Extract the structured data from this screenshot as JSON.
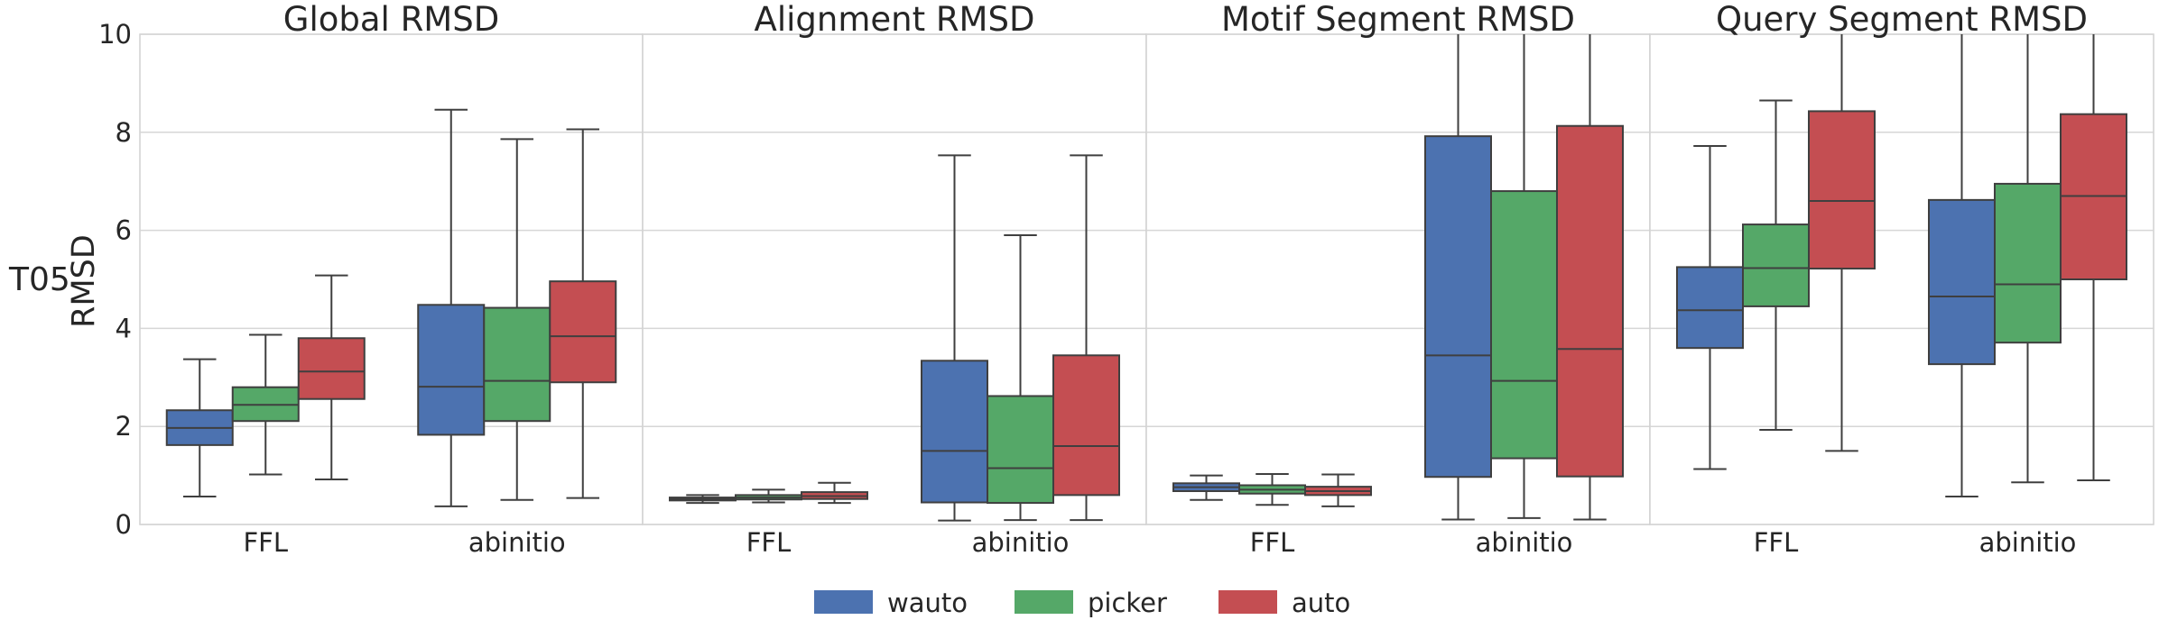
{
  "row_label": "T05",
  "chart_data": {
    "type": "box",
    "ylabel": "RMSD",
    "ylim": [
      0,
      10
    ],
    "yticks": [
      "0",
      "2",
      "4",
      "6",
      "8",
      "10"
    ],
    "grid": true,
    "legend_position": "bottom-center",
    "legend": [
      {
        "name": "wauto",
        "color": "#4c72b0"
      },
      {
        "name": "picker",
        "color": "#55a868"
      },
      {
        "name": "auto",
        "color": "#c44e52"
      }
    ],
    "categories": [
      "FFL",
      "abinitio"
    ],
    "panels": [
      {
        "title": "Global RMSD",
        "groups": [
          {
            "category": "FFL",
            "boxes": [
              {
                "series": "wauto",
                "min": 0.57,
                "q1": 1.62,
                "median": 1.97,
                "q3": 2.33,
                "max": 3.37
              },
              {
                "series": "picker",
                "min": 1.02,
                "q1": 2.11,
                "median": 2.44,
                "q3": 2.8,
                "max": 3.87
              },
              {
                "series": "auto",
                "min": 0.92,
                "q1": 2.56,
                "median": 3.12,
                "q3": 3.8,
                "max": 5.08
              }
            ]
          },
          {
            "category": "abinitio",
            "boxes": [
              {
                "series": "wauto",
                "min": 0.37,
                "q1": 1.83,
                "median": 2.81,
                "q3": 4.48,
                "max": 8.46
              },
              {
                "series": "picker",
                "min": 0.5,
                "q1": 2.11,
                "median": 2.93,
                "q3": 4.42,
                "max": 7.86
              },
              {
                "series": "auto",
                "min": 0.54,
                "q1": 2.9,
                "median": 3.84,
                "q3": 4.96,
                "max": 8.06
              }
            ]
          }
        ]
      },
      {
        "title": "Alignment RMSD",
        "groups": [
          {
            "category": "FFL",
            "boxes": [
              {
                "series": "wauto",
                "min": 0.44,
                "q1": 0.49,
                "median": 0.52,
                "q3": 0.55,
                "max": 0.6
              },
              {
                "series": "picker",
                "min": 0.45,
                "q1": 0.51,
                "median": 0.55,
                "q3": 0.6,
                "max": 0.71
              },
              {
                "series": "auto",
                "min": 0.44,
                "q1": 0.52,
                "median": 0.58,
                "q3": 0.66,
                "max": 0.85
              }
            ]
          },
          {
            "category": "abinitio",
            "boxes": [
              {
                "series": "wauto",
                "min": 0.08,
                "q1": 0.45,
                "median": 1.5,
                "q3": 3.34,
                "max": 7.53
              },
              {
                "series": "picker",
                "min": 0.09,
                "q1": 0.44,
                "median": 1.15,
                "q3": 2.62,
                "max": 5.9
              },
              {
                "series": "auto",
                "min": 0.09,
                "q1": 0.6,
                "median": 1.6,
                "q3": 3.45,
                "max": 7.53
              }
            ]
          }
        ]
      },
      {
        "title": "Motif Segment RMSD",
        "groups": [
          {
            "category": "FFL",
            "boxes": [
              {
                "series": "wauto",
                "min": 0.5,
                "q1": 0.68,
                "median": 0.76,
                "q3": 0.84,
                "max": 1.0
              },
              {
                "series": "picker",
                "min": 0.4,
                "q1": 0.63,
                "median": 0.71,
                "q3": 0.8,
                "max": 1.03
              },
              {
                "series": "auto",
                "min": 0.37,
                "q1": 0.6,
                "median": 0.68,
                "q3": 0.77,
                "max": 1.02
              }
            ]
          },
          {
            "category": "abinitio",
            "boxes": [
              {
                "series": "wauto",
                "min": 0.1,
                "q1": 0.97,
                "median": 3.45,
                "q3": 7.92,
                "max": 10.0
              },
              {
                "series": "picker",
                "min": 0.13,
                "q1": 1.35,
                "median": 2.93,
                "q3": 6.8,
                "max": 10.0
              },
              {
                "series": "auto",
                "min": 0.1,
                "q1": 0.98,
                "median": 3.58,
                "q3": 8.13,
                "max": 10.0
              }
            ]
          }
        ]
      },
      {
        "title": "Query Segment RMSD",
        "groups": [
          {
            "category": "FFL",
            "boxes": [
              {
                "series": "wauto",
                "min": 1.13,
                "q1": 3.6,
                "median": 4.37,
                "q3": 5.25,
                "max": 7.72
              },
              {
                "series": "picker",
                "min": 1.93,
                "q1": 4.45,
                "median": 5.23,
                "q3": 6.12,
                "max": 8.65
              },
              {
                "series": "auto",
                "min": 1.5,
                "q1": 5.22,
                "median": 6.6,
                "q3": 8.43,
                "max": 10.0
              }
            ]
          },
          {
            "category": "abinitio",
            "boxes": [
              {
                "series": "wauto",
                "min": 0.57,
                "q1": 3.27,
                "median": 4.65,
                "q3": 6.62,
                "max": 10.0
              },
              {
                "series": "picker",
                "min": 0.86,
                "q1": 3.71,
                "median": 4.9,
                "q3": 6.95,
                "max": 10.0
              },
              {
                "series": "auto",
                "min": 0.9,
                "q1": 5.0,
                "median": 6.7,
                "q3": 8.37,
                "max": 10.0
              }
            ]
          }
        ]
      }
    ]
  }
}
